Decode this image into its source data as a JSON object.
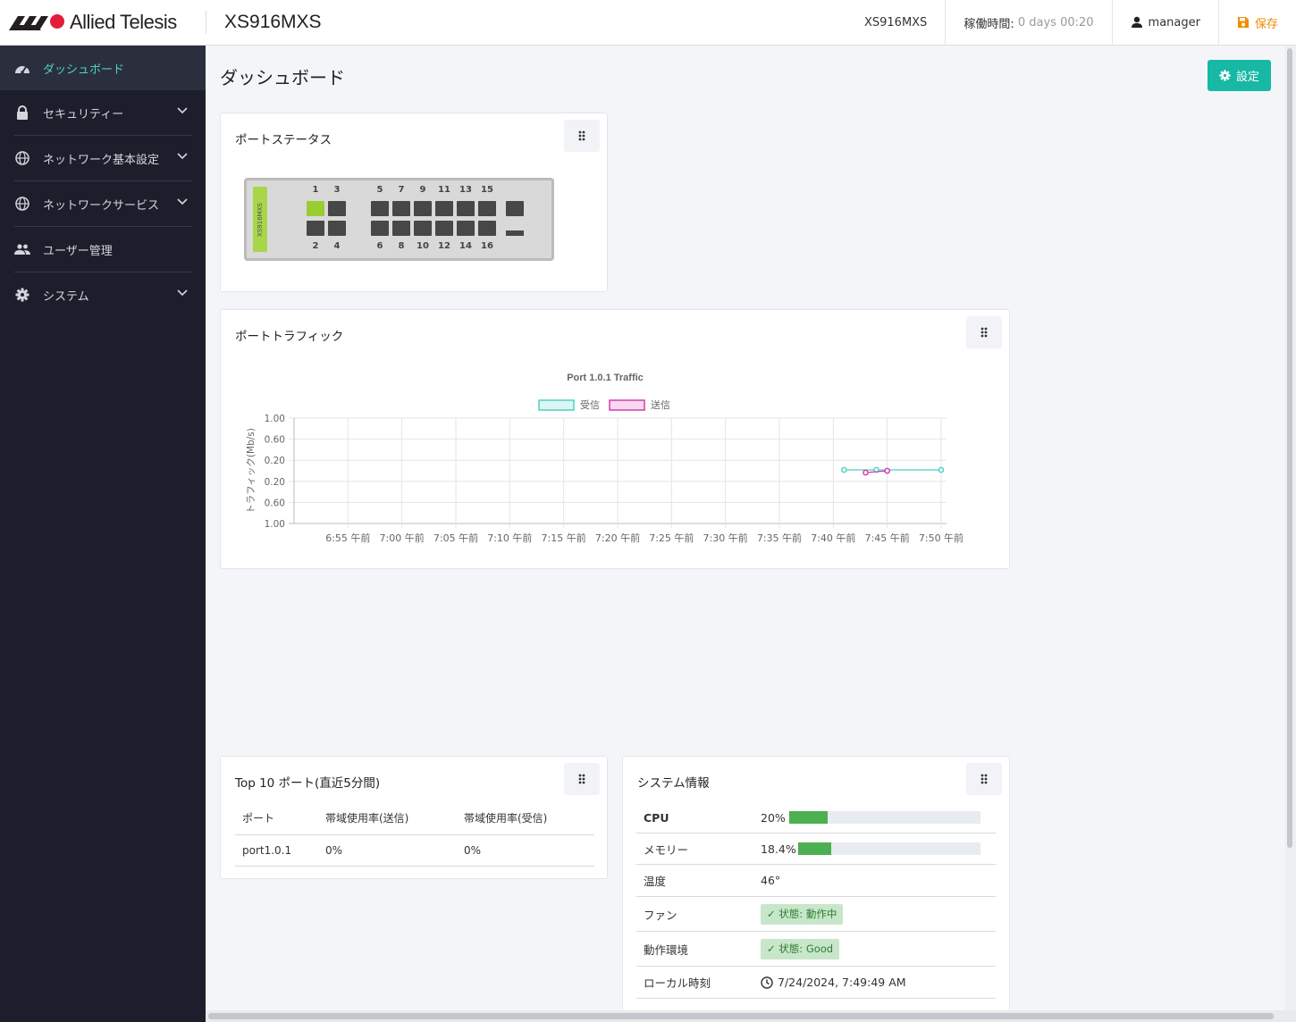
{
  "header": {
    "brand": "Allied Telesis",
    "model": "XS916MXS",
    "hostname": "XS916MXS",
    "uptime_label": "稼働時間:",
    "uptime_value": "0 days 00:20",
    "user": "manager",
    "save_label": "保存",
    "colors": {
      "brand_red": "#e31d3b",
      "save": "#f08c00"
    }
  },
  "sidebar": {
    "items": [
      {
        "label": "ダッシュボード",
        "icon": "dashboard-icon",
        "active": true
      },
      {
        "label": "セキュリティー",
        "icon": "lock-icon",
        "expandable": true
      },
      {
        "label": "ネットワーク基本設定",
        "icon": "globe-icon",
        "expandable": true
      },
      {
        "label": "ネットワークサービス",
        "icon": "globe-icon",
        "expandable": true
      },
      {
        "label": "ユーザー管理",
        "icon": "users-icon"
      },
      {
        "label": "システム",
        "icon": "gear-icon",
        "expandable": true
      }
    ],
    "colors": {
      "bg": "#1c1f2b",
      "active_text": "#4fd1c5"
    }
  },
  "main": {
    "title": "ダッシュボード",
    "settings_label": "設定",
    "port_status": {
      "title": "ポートステータス",
      "device_label": "XS916MXS",
      "top_numbers": [
        "1",
        "3",
        "5",
        "7",
        "9",
        "11",
        "13",
        "15"
      ],
      "bottom_numbers": [
        "2",
        "4",
        "6",
        "8",
        "10",
        "12",
        "14",
        "16"
      ],
      "up_ports": [
        "1"
      ]
    },
    "port_traffic": {
      "title": "ポートトラフィック"
    },
    "top10": {
      "title": "Top 10 ポート(直近5分間)",
      "columns": [
        "ポート",
        "帯域使用率(送信)",
        "帯域使用率(受信)"
      ],
      "rows": [
        [
          "port1.0.1",
          "0%",
          "0%"
        ]
      ]
    },
    "system_info": {
      "title": "システム情報",
      "cpu_label": "CPU",
      "cpu_value": "20%",
      "cpu_fraction": 0.2,
      "memory_label": "メモリー",
      "memory_value": "18.4%",
      "memory_fraction": 0.18,
      "temp_label": "温度",
      "temp_value": "46°",
      "fan_label": "ファン",
      "fan_value": "状態: 動作中",
      "env_label": "動作環境",
      "env_value": "状態: Good",
      "time_label": "ローカル時刻",
      "time_value": "7/24/2024, 7:49:49 AM"
    }
  },
  "chart_data": {
    "type": "line",
    "title": "Port 1.0.1 Traffic",
    "ylabel": "トラフィック(Mb/s)",
    "ytick_labels": [
      "1.00",
      "0.60",
      "0.20",
      "0.20",
      "0.60",
      "1.00"
    ],
    "x_tick_labels": [
      "6:55 午前",
      "7:00 午前",
      "7:05 午前",
      "7:10 午前",
      "7:15 午前",
      "7:20 午前",
      "7:25 午前",
      "7:30 午前",
      "7:35 午前",
      "7:40 午前",
      "7:45 午前",
      "7:50 午前"
    ],
    "series": [
      {
        "name": "受信",
        "color": "#4fd1c5",
        "x": [
          "7:41",
          "7:44",
          "7:50"
        ],
        "values": [
          0,
          0,
          0
        ]
      },
      {
        "name": "送信",
        "color": "#d63ab1",
        "x": [
          "7:43",
          "7:45"
        ],
        "values": [
          0,
          0
        ]
      }
    ],
    "legend": "top",
    "grid": true
  }
}
